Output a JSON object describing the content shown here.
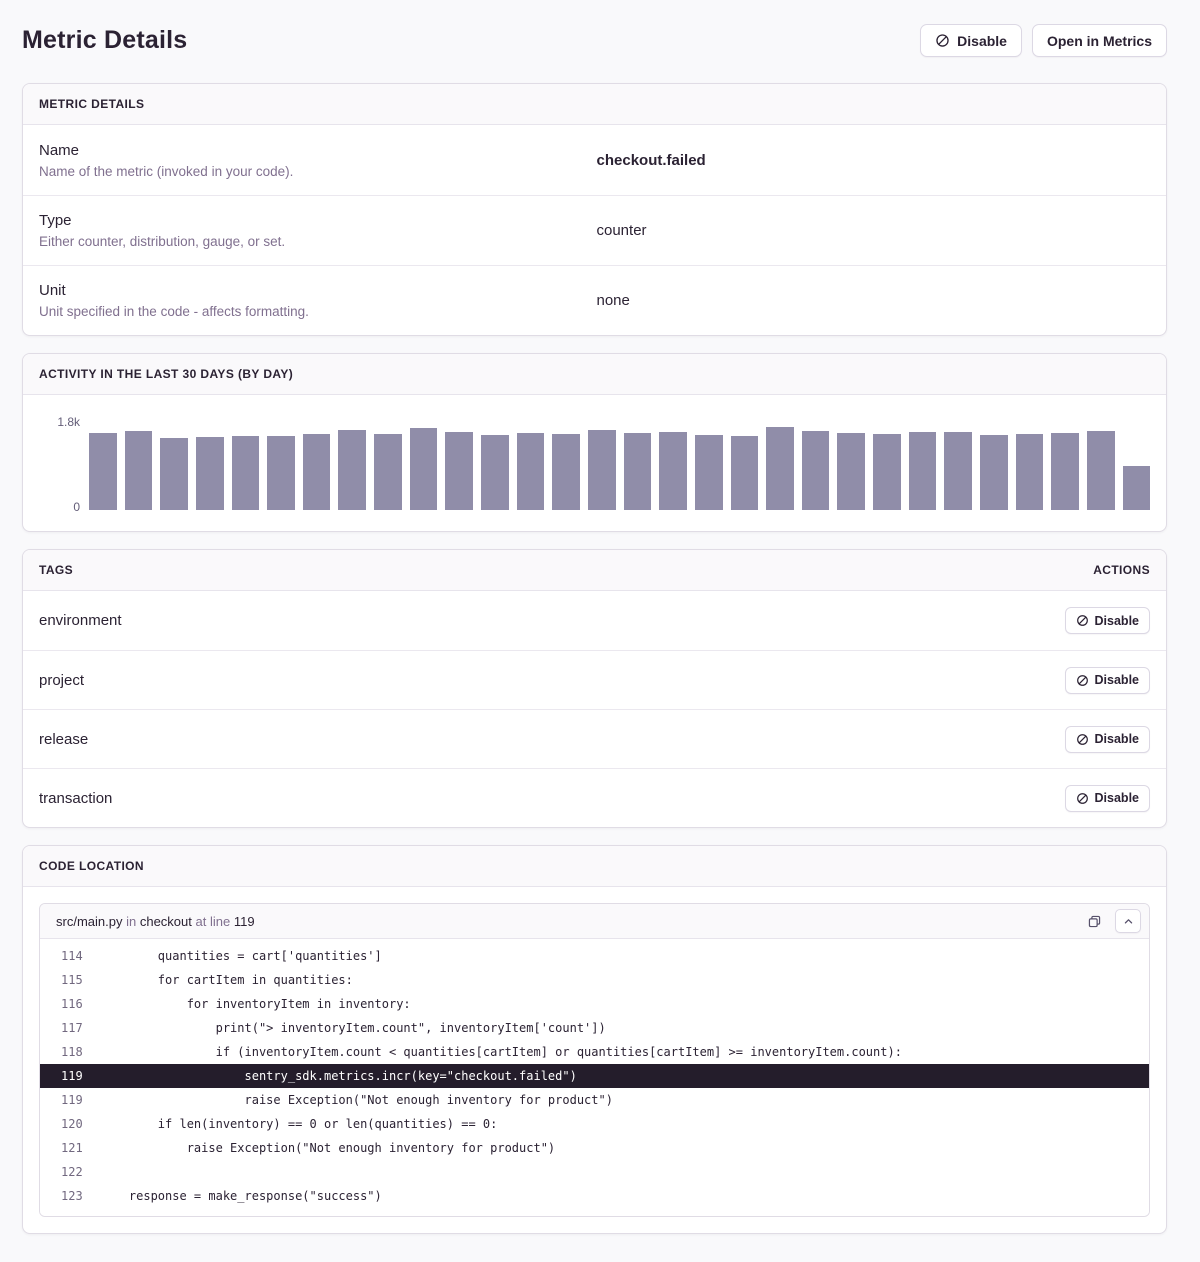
{
  "page": {
    "title": "Metric Details"
  },
  "header": {
    "disable_button": "Disable",
    "open_in_metrics_button": "Open in Metrics"
  },
  "metric_details": {
    "title": "METRIC DETAILS",
    "rows": [
      {
        "label": "Name",
        "description": "Name of the metric (invoked in your code).",
        "value": "checkout.failed"
      },
      {
        "label": "Type",
        "description": "Either counter, distribution, gauge, or set.",
        "value": "counter"
      },
      {
        "label": "Unit",
        "description": "Unit specified in the code - affects formatting.",
        "value": "none"
      }
    ]
  },
  "chart_data": {
    "type": "bar",
    "title": "ACTIVITY IN THE LAST 30 DAYS (BY DAY)",
    "xlabel": "",
    "ylabel": "",
    "ylim": [
      0,
      1800
    ],
    "ytick_labels": [
      "1.8k",
      "0"
    ],
    "grid": false,
    "legend": false,
    "bar_color": "#908da9",
    "values": [
      1540,
      1590,
      1450,
      1470,
      1490,
      1480,
      1520,
      1600,
      1530,
      1650,
      1570,
      1500,
      1540,
      1520,
      1610,
      1550,
      1570,
      1510,
      1490,
      1660,
      1590,
      1550,
      1530,
      1570,
      1560,
      1510,
      1530,
      1540,
      1580,
      890
    ]
  },
  "tags": {
    "title": "TAGS",
    "actions_label": "ACTIONS",
    "disable_label": "Disable",
    "rows": [
      {
        "name": "environment"
      },
      {
        "name": "project"
      },
      {
        "name": "release"
      },
      {
        "name": "transaction"
      }
    ]
  },
  "code_location": {
    "title": "CODE LOCATION",
    "file": "src/main.py",
    "in_label": "in",
    "function": "checkout",
    "at_line_label": "at line",
    "line_number": "119",
    "lines": [
      {
        "num": "114",
        "text": "        quantities = cart['quantities']",
        "highlighted": false
      },
      {
        "num": "115",
        "text": "        for cartItem in quantities:",
        "highlighted": false
      },
      {
        "num": "116",
        "text": "            for inventoryItem in inventory:",
        "highlighted": false
      },
      {
        "num": "117",
        "text": "                print(\"> inventoryItem.count\", inventoryItem['count'])",
        "highlighted": false
      },
      {
        "num": "118",
        "text": "                if (inventoryItem.count < quantities[cartItem] or quantities[cartItem] >= inventoryItem.count):",
        "highlighted": false
      },
      {
        "num": "119",
        "text": "                    sentry_sdk.metrics.incr(key=\"checkout.failed\")",
        "highlighted": true
      },
      {
        "num": "119",
        "text": "                    raise Exception(\"Not enough inventory for product\")",
        "highlighted": false
      },
      {
        "num": "120",
        "text": "        if len(inventory) == 0 or len(quantities) == 0:",
        "highlighted": false
      },
      {
        "num": "121",
        "text": "            raise Exception(\"Not enough inventory for product\")",
        "highlighted": false
      },
      {
        "num": "122",
        "text": "",
        "highlighted": false
      },
      {
        "num": "123",
        "text": "    response = make_response(\"success\")",
        "highlighted": false
      }
    ]
  },
  "colors": {
    "bar": "#908da9",
    "highlight_line_bg": "#241d2b",
    "panel_border": "#e0dce5"
  }
}
